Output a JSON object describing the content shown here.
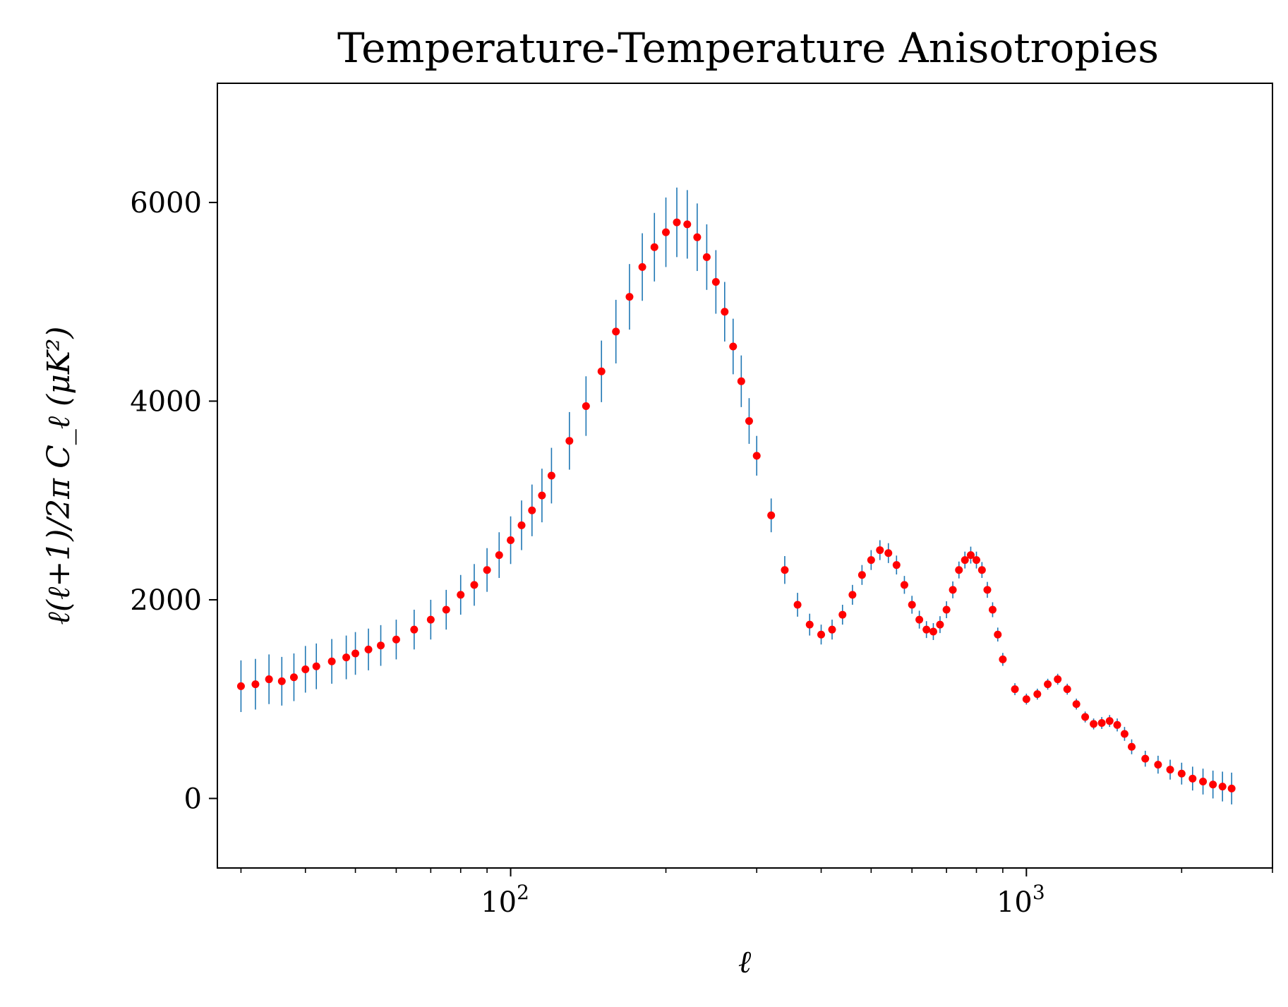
{
  "chart_data": {
    "type": "scatter",
    "title": "Temperature-Temperature Anisotropies",
    "xlabel": "ℓ",
    "ylabel": "ℓ(ℓ+1)/2π C_ℓ (μK²)",
    "x_scale": "log",
    "xlim": [
      27,
      3000
    ],
    "ylim": [
      -700,
      7200
    ],
    "x_ticks": [
      {
        "value": 100,
        "label": "10",
        "exp": "2"
      },
      {
        "value": 1000,
        "label": "10",
        "exp": "3"
      }
    ],
    "y_ticks": [
      {
        "value": 0,
        "label": "0"
      },
      {
        "value": 2000,
        "label": "2000"
      },
      {
        "value": 4000,
        "label": "4000"
      },
      {
        "value": 6000,
        "label": "6000"
      }
    ],
    "grid": false,
    "colors": {
      "points": "#ff0000",
      "errorbars": "#1f77b4"
    },
    "series": [
      {
        "x": [
          30,
          32,
          34,
          36,
          38,
          40,
          42,
          45,
          48,
          50,
          53,
          56,
          60,
          65,
          70,
          75,
          80,
          85,
          90,
          95,
          100,
          105,
          110,
          115,
          120,
          130,
          140,
          150,
          160,
          170,
          180,
          190,
          200,
          210,
          220,
          230,
          240,
          250,
          260,
          270,
          280,
          290,
          300,
          320,
          340,
          360,
          380,
          400,
          420,
          440,
          460,
          480,
          500,
          520,
          540,
          560,
          580,
          600,
          620,
          640,
          660,
          680,
          700,
          720,
          740,
          760,
          780,
          800,
          820,
          840,
          860,
          880,
          900,
          950,
          1000,
          1050,
          1100,
          1150,
          1200,
          1250,
          1300,
          1350,
          1400,
          1450,
          1500,
          1550,
          1600,
          1700,
          1800,
          1900,
          2000,
          2100,
          2200,
          2300,
          2400,
          2500
        ],
        "y": [
          1130,
          1150,
          1200,
          1180,
          1220,
          1300,
          1330,
          1380,
          1420,
          1460,
          1500,
          1540,
          1600,
          1700,
          1800,
          1900,
          2050,
          2150,
          2300,
          2450,
          2600,
          2750,
          2900,
          3050,
          3250,
          3600,
          3950,
          4300,
          4700,
          5050,
          5350,
          5550,
          5700,
          5800,
          5780,
          5650,
          5450,
          5200,
          4900,
          4550,
          4200,
          3800,
          3450,
          2850,
          2300,
          1950,
          1750,
          1650,
          1700,
          1850,
          2050,
          2250,
          2400,
          2500,
          2470,
          2350,
          2150,
          1950,
          1800,
          1700,
          1680,
          1750,
          1900,
          2100,
          2300,
          2400,
          2450,
          2400,
          2300,
          2100,
          1900,
          1650,
          1400,
          1100,
          1000,
          1050,
          1150,
          1200,
          1100,
          950,
          820,
          750,
          760,
          780,
          740,
          650,
          520,
          400,
          340,
          290,
          250,
          200,
          170,
          140,
          120,
          100
        ],
        "error": [
          260,
          255,
          250,
          245,
          240,
          235,
          230,
          225,
          220,
          215,
          210,
          205,
          200,
          200,
          200,
          200,
          200,
          210,
          220,
          230,
          240,
          250,
          260,
          270,
          280,
          290,
          300,
          310,
          320,
          330,
          340,
          345,
          350,
          350,
          345,
          340,
          330,
          320,
          300,
          280,
          260,
          230,
          200,
          170,
          140,
          120,
          110,
          100,
          100,
          100,
          100,
          100,
          100,
          100,
          100,
          95,
          90,
          90,
          90,
          85,
          85,
          85,
          85,
          85,
          85,
          85,
          85,
          85,
          80,
          80,
          75,
          70,
          65,
          60,
          55,
          55,
          55,
          55,
          55,
          55,
          55,
          55,
          60,
          60,
          65,
          70,
          75,
          80,
          90,
          100,
          110,
          120,
          130,
          140,
          150,
          160
        ]
      }
    ]
  }
}
